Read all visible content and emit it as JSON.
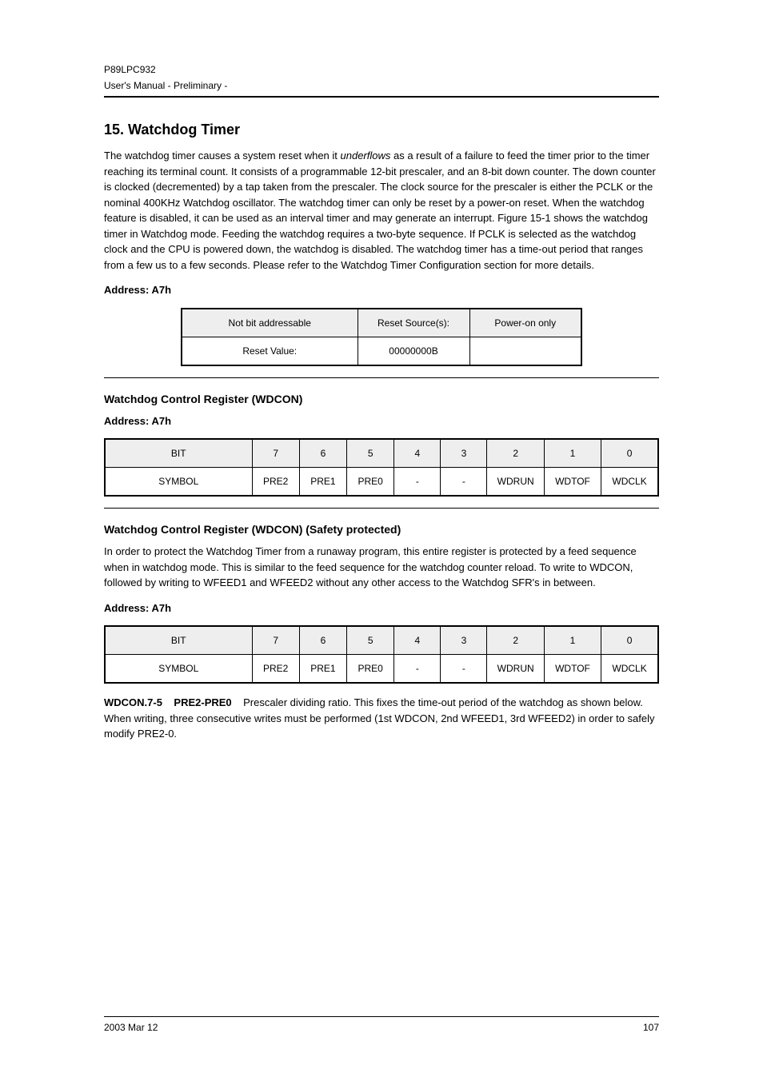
{
  "header": {
    "chip_name": "P89LPC932",
    "doc_type": "User's Manual - Preliminary -"
  },
  "section": {
    "number": "15.",
    "title": "Watchdog Timer"
  },
  "intro": {
    "p1a": "The watchdog timer causes a system reset when it ",
    "p1b": "underflows",
    "p1c": " as a result of a failure to feed the timer prior to the timer reaching its terminal count. It consists of a programmable 12-bit prescaler, and an 8-bit down counter. The down counter is clocked (decremented) by a tap taken from the prescaler. The clock source for the prescaler is either the PCLK or the nominal 400KHz Watchdog oscillator. The watchdog timer can only be reset by a power-on reset. When the watchdog feature is disabled, it can be used as an interval timer and may generate an interrupt. Figure 15-1 shows the watchdog timer in Watchdog mode. Feeding the watchdog requires a two-byte sequence. If PCLK is selected as the watchdog clock and the CPU is powered down, the watchdog is disabled. The watchdog timer has a time-out period that ranges from a few us to a few seconds. Please refer to the Watchdog Timer Configuration section for more details."
  },
  "table1": {
    "caption": "Address:  A7h",
    "header": [
      "Not bit addressable",
      "Reset Source(s):",
      "Power-on only"
    ],
    "row": [
      "Reset Value:",
      "00000000B",
      ""
    ]
  },
  "table2": {
    "title": "Watchdog Control Register (WDCON)",
    "caption": "Address:  A7h",
    "header": [
      "BIT",
      "7",
      "6",
      "5",
      "4",
      "3",
      "2",
      "1",
      "0"
    ],
    "row1": [
      "SYMBOL",
      "PRE2",
      "PRE1",
      "PRE0",
      "-",
      "-",
      "WDRUN",
      "WDTOF",
      "WDCLK"
    ]
  },
  "table3": {
    "title": "Watchdog Control Register (WDCON) (Safety protected)",
    "pre_p1": "In order to protect the Watchdog Timer from a runaway program, this entire register is protected by a feed sequence when in watchdog mode. This is similar to the feed sequence for the watchdog counter reload. To write to WDCON, followed by writing to WFEED1 and WFEED2 without any other access to the Watchdog SFR's in between.",
    "caption": "Address:  A7h",
    "header": [
      "BIT",
      "7",
      "6",
      "5",
      "4",
      "3",
      "2",
      "1",
      "0"
    ],
    "row1": [
      "SYMBOL",
      "PRE2",
      "PRE1",
      "PRE0",
      "-",
      "-",
      "WDRUN",
      "WDTOF",
      "WDCLK"
    ],
    "post_p1_label": "WDCON.7-5",
    "post_p1_name": "PRE2-PRE0",
    "post_p1_text": "Prescaler dividing ratio. This fixes the time-out period of the watchdog as shown below. When writing, three consecutive writes must be performed (1st WDCON, 2nd WFEED1, 3rd WFEED2) in order to safely modify PRE2-0."
  },
  "footer": {
    "date": "2003 Mar 12",
    "page": "107"
  }
}
